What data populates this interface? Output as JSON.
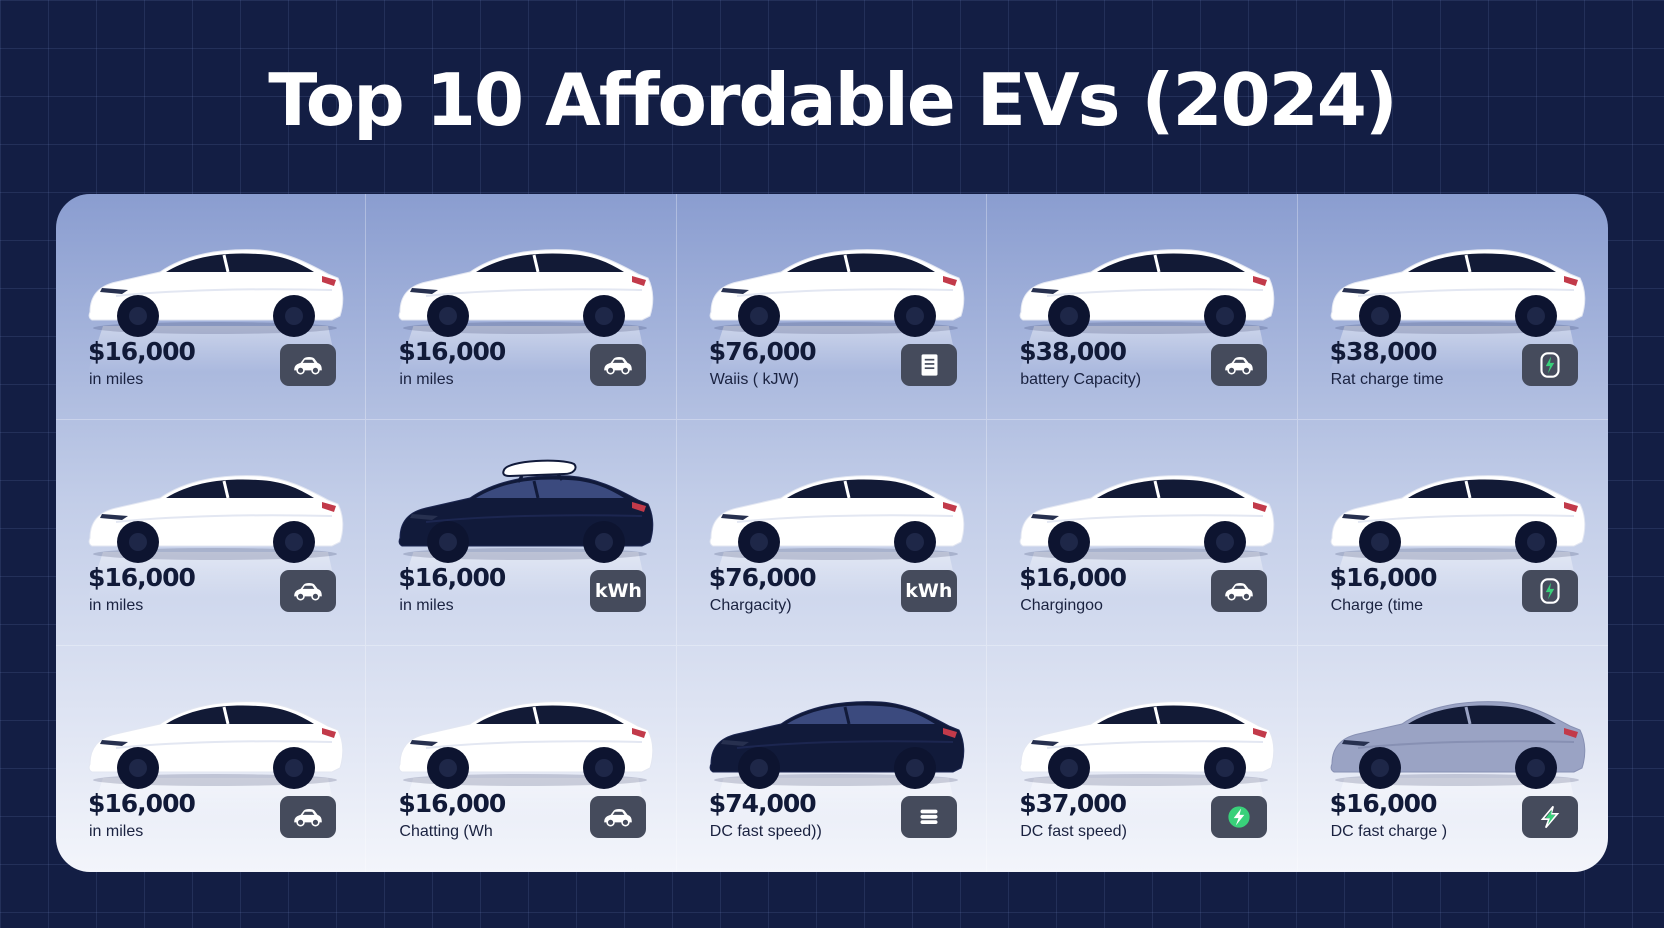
{
  "title": "Top 10 Affordable EVs (2024)",
  "cards": [
    {
      "price": "$16,000",
      "label": "in miles",
      "icon": "car-icon",
      "icon_text": "",
      "car": "white"
    },
    {
      "price": "$16,000",
      "label": "in miles",
      "icon": "car-icon",
      "icon_text": "",
      "car": "white"
    },
    {
      "price": "$76,000",
      "label": "Waiis ( kJW)",
      "icon": "document-icon",
      "icon_text": "",
      "car": "white"
    },
    {
      "price": "$38,000",
      "label": "battery Capacity)",
      "icon": "car-icon",
      "icon_text": "",
      "car": "white"
    },
    {
      "price": "$38,000",
      "label": "Rat charge time",
      "icon": "charging-bolt-icon",
      "icon_text": "",
      "car": "white"
    },
    {
      "price": "$16,000",
      "label": "in miles",
      "icon": "car-icon",
      "icon_text": "",
      "car": "white"
    },
    {
      "price": "$16,000",
      "label": "in miles",
      "icon": "kwh-icon",
      "icon_text": "kWh",
      "car": "dark-roofbox"
    },
    {
      "price": "$76,000",
      "label": "Chargacity)",
      "icon": "kwh-icon",
      "icon_text": "kWh",
      "car": "white"
    },
    {
      "price": "$16,000",
      "label": "Chargingoo",
      "icon": "car-icon",
      "icon_text": "",
      "car": "white"
    },
    {
      "price": "$16,000",
      "label": "Charge (time",
      "icon": "charging-bolt-icon",
      "icon_text": "",
      "car": "white"
    },
    {
      "price": "$16,000",
      "label": "in miles",
      "icon": "car-icon",
      "icon_text": "",
      "car": "white"
    },
    {
      "price": "$16,000",
      "label": "Chatting (Wh",
      "icon": "car-icon",
      "icon_text": "",
      "car": "white"
    },
    {
      "price": "$74,000",
      "label": "DC fast speed))",
      "icon": "battery-stack-icon",
      "icon_text": "",
      "car": "dark"
    },
    {
      "price": "$37,000",
      "label": "DC fast speed)",
      "icon": "bolt-circle-icon",
      "icon_text": "",
      "car": "white"
    },
    {
      "price": "$16,000",
      "label": "DC fast charge )",
      "icon": "bolt-icon",
      "icon_text": "",
      "car": "gray"
    }
  ],
  "colors": {
    "background": "#131e44",
    "badge": "#454b5c",
    "accent_green": "#39d07a",
    "price_text": "#111a38",
    "car_white": "#ffffff",
    "car_dark": "#111a3a",
    "car_gray": "#9aa3c4"
  }
}
